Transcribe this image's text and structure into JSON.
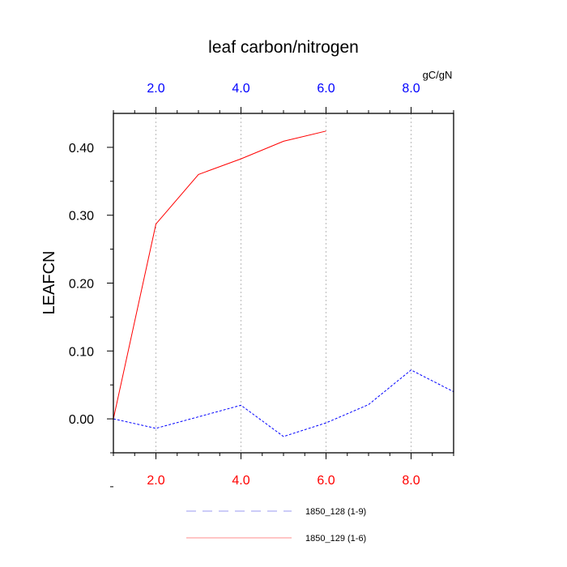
{
  "chart_data": {
    "type": "line",
    "title": "leaf carbon/nitrogen",
    "units": "gC/gN",
    "ylabel": "LEAFCN",
    "xlim": [
      1,
      9
    ],
    "ylim": [
      -0.05,
      0.45
    ],
    "x_ticks": [
      2,
      4,
      6,
      8
    ],
    "x_tick_labels": [
      "2.0",
      "4.0",
      "6.0",
      "8.0"
    ],
    "y_ticks": [
      0.0,
      0.1,
      0.2,
      0.3,
      0.4
    ],
    "y_tick_labels": [
      "0.00",
      "0.10",
      "0.20",
      "0.30",
      "0.40"
    ],
    "grid": "vertical dotted at major x ticks",
    "colors": {
      "bottom_axis_labels": "#ff0000",
      "top_axis_labels": "#0000ff"
    },
    "series": [
      {
        "name": "1850_128 (1-9)",
        "color": "#0000ff",
        "dash": "dashed",
        "x": [
          1,
          2,
          3,
          4,
          5,
          6,
          7,
          8,
          9
        ],
        "values": [
          0.0,
          -0.014,
          0.003,
          0.02,
          -0.026,
          -0.006,
          0.021,
          0.072,
          0.04
        ]
      },
      {
        "name": "1850_129 (1-6)",
        "color": "#ff0000",
        "dash": "solid",
        "x": [
          1,
          2,
          3,
          4,
          5,
          6
        ],
        "values": [
          0.0,
          0.287,
          0.36,
          0.383,
          0.409,
          0.424
        ]
      }
    ]
  }
}
